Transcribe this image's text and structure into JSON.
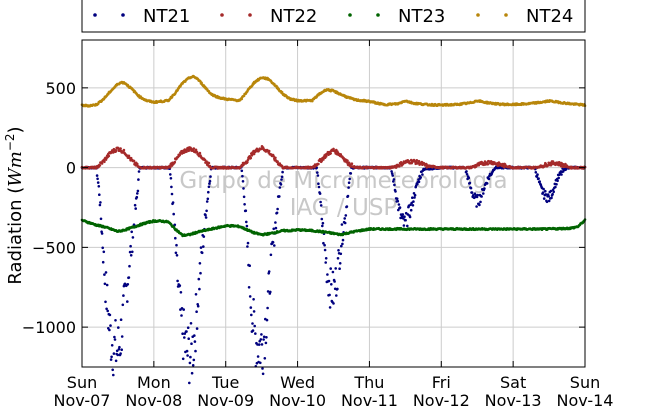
{
  "chart_data": {
    "type": "scatter",
    "title": "",
    "ylabel": "Radiation (Wm⁻²)",
    "ylabel_parts": {
      "text": "Radiation (",
      "units": "Wm",
      "exp": "−2",
      "close": ")"
    },
    "xlabel": "",
    "ylim": [
      -1250,
      800
    ],
    "yticks": [
      500,
      0,
      -500,
      -1000
    ],
    "ytick_labels": [
      "500",
      "0",
      "−500",
      "−1000"
    ],
    "xlim": [
      0,
      7
    ],
    "xticks": [
      0,
      1,
      2,
      3,
      4,
      5,
      6,
      7
    ],
    "xtick_labels": [
      [
        "Sun",
        "Nov-07"
      ],
      [
        "Mon",
        "Nov-08"
      ],
      [
        "Tue",
        "Nov-09"
      ],
      [
        "Wed",
        "Nov-10"
      ],
      [
        "Thu",
        "Nov-11"
      ],
      [
        "Fri",
        "Nov-12"
      ],
      [
        "Sat",
        "Nov-13"
      ],
      [
        "Sun",
        "Nov-14"
      ]
    ],
    "grid": true,
    "legend_position": "top",
    "watermark": [
      "Grupo de Micrometeorologia",
      "IAG / USP"
    ],
    "series": [
      {
        "name": "NT21",
        "color": "#00007f",
        "x": [
          0,
          0.2,
          0.24,
          0.28,
          0.32,
          0.36,
          0.4,
          0.44,
          0.5,
          0.54,
          0.58,
          0.62,
          0.66,
          0.7,
          0.74,
          0.78,
          0.8,
          1,
          1.22,
          1.26,
          1.3,
          1.34,
          1.38,
          1.42,
          1.46,
          1.52,
          1.56,
          1.6,
          1.64,
          1.68,
          1.72,
          1.76,
          1.8,
          2,
          2.22,
          2.26,
          2.3,
          2.34,
          2.38,
          2.42,
          2.46,
          2.52,
          2.56,
          2.6,
          2.64,
          2.68,
          2.72,
          2.76,
          2.8,
          3,
          3.26,
          3.3,
          3.34,
          3.38,
          3.42,
          3.46,
          3.5,
          3.54,
          3.58,
          3.62,
          3.66,
          3.7,
          3.75,
          4,
          4.3,
          4.34,
          4.38,
          4.42,
          4.46,
          4.5,
          4.54,
          4.58,
          4.62,
          4.66,
          4.7,
          4.75,
          5,
          5.33,
          5.37,
          5.41,
          5.45,
          5.49,
          5.53,
          5.57,
          5.61,
          5.65,
          5.7,
          5.75,
          6,
          6.3,
          6.34,
          6.38,
          6.42,
          6.46,
          6.5,
          6.54,
          6.58,
          6.62,
          6.66,
          6.7,
          6.75,
          7
        ],
        "y": [
          0,
          0,
          -150,
          -420,
          -700,
          -900,
          -1060,
          -1130,
          -1150,
          -1060,
          -900,
          -760,
          -600,
          -450,
          -280,
          -120,
          0,
          0,
          0,
          -200,
          -480,
          -760,
          -960,
          -1080,
          -1150,
          -1180,
          -1080,
          -880,
          -660,
          -480,
          -300,
          -140,
          0,
          0,
          0,
          -180,
          -470,
          -760,
          -970,
          -1080,
          -1120,
          -1100,
          -960,
          -780,
          -560,
          -400,
          -250,
          -110,
          0,
          0,
          0,
          -120,
          -330,
          -520,
          -680,
          -760,
          -780,
          -700,
          -560,
          -420,
          -320,
          -160,
          0,
          0,
          0,
          -90,
          -190,
          -280,
          -340,
          -360,
          -300,
          -250,
          -180,
          -110,
          -60,
          -10,
          0,
          0,
          -60,
          -130,
          -180,
          -210,
          -200,
          -160,
          -110,
          -70,
          -30,
          0,
          0,
          0,
          -60,
          -120,
          -160,
          -180,
          -190,
          -160,
          -110,
          -70,
          -40,
          -20,
          0,
          0
        ]
      },
      {
        "name": "NT22",
        "color": "#a52a2a",
        "x": [
          0,
          0.2,
          0.3,
          0.4,
          0.5,
          0.6,
          0.7,
          0.8,
          1,
          1.2,
          1.3,
          1.4,
          1.5,
          1.6,
          1.7,
          1.8,
          2,
          2.2,
          2.3,
          2.4,
          2.5,
          2.6,
          2.7,
          2.8,
          3,
          3.2,
          3.3,
          3.4,
          3.5,
          3.6,
          3.7,
          3.8,
          4,
          4.3,
          4.4,
          4.5,
          4.6,
          4.7,
          4.8,
          5,
          5.3,
          5.4,
          5.5,
          5.6,
          5.7,
          5.8,
          6,
          6.3,
          6.4,
          6.5,
          6.6,
          6.7,
          6.8,
          7
        ],
        "y": [
          0,
          0,
          40,
          95,
          120,
          95,
          40,
          0,
          0,
          0,
          45,
          100,
          120,
          100,
          50,
          0,
          0,
          0,
          45,
          100,
          125,
          100,
          45,
          0,
          0,
          0,
          35,
          80,
          110,
          80,
          30,
          0,
          0,
          0,
          15,
          35,
          40,
          30,
          10,
          0,
          0,
          0,
          15,
          30,
          35,
          20,
          0,
          0,
          10,
          25,
          30,
          15,
          0,
          0
        ]
      },
      {
        "name": "NT23",
        "color": "#006400",
        "x": [
          0,
          0.1,
          0.2,
          0.3,
          0.4,
          0.5,
          0.6,
          0.7,
          0.8,
          0.9,
          1,
          1.1,
          1.2,
          1.3,
          1.4,
          1.5,
          1.6,
          1.7,
          1.8,
          1.9,
          2,
          2.1,
          2.2,
          2.3,
          2.4,
          2.5,
          2.6,
          2.7,
          2.8,
          2.9,
          3,
          3.2,
          3.4,
          3.6,
          3.8,
          4,
          4.5,
          5,
          5.5,
          6,
          6.5,
          6.8,
          6.9,
          7
        ],
        "y": [
          -330,
          -345,
          -360,
          -370,
          -385,
          -400,
          -390,
          -375,
          -360,
          -345,
          -335,
          -335,
          -340,
          -385,
          -425,
          -420,
          -405,
          -395,
          -385,
          -375,
          -365,
          -365,
          -370,
          -390,
          -410,
          -420,
          -415,
          -405,
          -395,
          -395,
          -390,
          -395,
          -405,
          -420,
          -400,
          -385,
          -385,
          -385,
          -385,
          -385,
          -385,
          -380,
          -370,
          -330
        ]
      },
      {
        "name": "NT24",
        "color": "#b8860b",
        "x": [
          0,
          0.1,
          0.2,
          0.3,
          0.4,
          0.5,
          0.55,
          0.6,
          0.7,
          0.8,
          0.9,
          1,
          1.2,
          1.3,
          1.4,
          1.5,
          1.55,
          1.6,
          1.7,
          1.8,
          1.9,
          2,
          2.2,
          2.3,
          2.4,
          2.5,
          2.55,
          2.6,
          2.7,
          2.8,
          2.9,
          3,
          3.2,
          3.3,
          3.4,
          3.5,
          3.6,
          3.7,
          3.8,
          4,
          4.2,
          4.4,
          4.5,
          4.6,
          4.8,
          5,
          5.2,
          5.4,
          5.5,
          5.6,
          5.8,
          6,
          6.2,
          6.4,
          6.5,
          6.6,
          6.8,
          7
        ],
        "y": [
          390,
          388,
          395,
          430,
          480,
          525,
          535,
          530,
          490,
          445,
          420,
          410,
          420,
          470,
          530,
          565,
          570,
          560,
          510,
          460,
          440,
          430,
          420,
          480,
          535,
          565,
          560,
          555,
          510,
          460,
          430,
          420,
          420,
          460,
          490,
          480,
          460,
          440,
          425,
          415,
          395,
          400,
          420,
          405,
          395,
          392,
          395,
          405,
          420,
          410,
          398,
          395,
          400,
          410,
          418,
          412,
          400,
          392
        ]
      }
    ]
  }
}
